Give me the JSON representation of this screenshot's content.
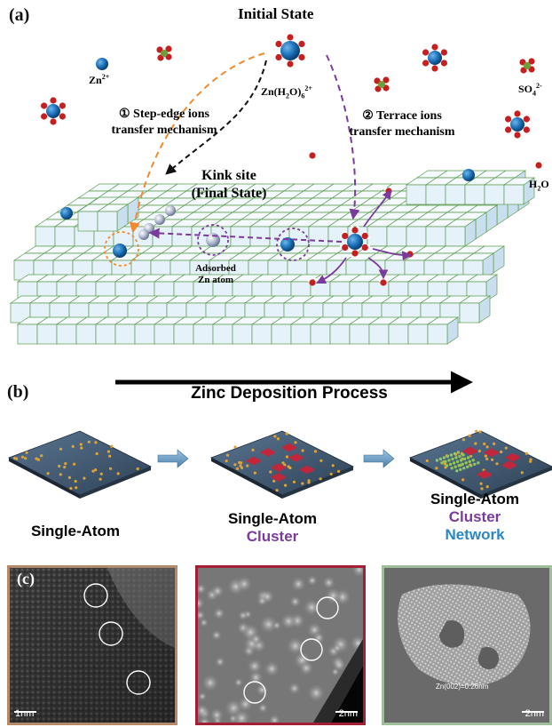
{
  "panel_a": {
    "label": "(a)",
    "initial_state": "Initial State",
    "zn_ion": "Zn",
    "zn_ion_charge": "2+",
    "hydrated_zn_prefix": "Zn(H",
    "hydrated_zn_sub2": "2",
    "hydrated_zn_mid": "O)",
    "hydrated_zn_sub6": "6",
    "hydrated_zn_charge": "2+",
    "sulfate": "SO",
    "sulfate_sub": "4",
    "sulfate_charge": "2-",
    "water": "H",
    "water_sub": "2",
    "water_end": "O",
    "step_edge_line1": "① Step-edge ions",
    "step_edge_line2": "transfer mechanism",
    "terrace_line1": "② Terrace ions",
    "terrace_line2": "transfer mechanism",
    "kink_line1": "Kink site",
    "kink_line2": "(Final State)",
    "adsorbed_line1": "Adsorbed",
    "adsorbed_line2": "Zn atom"
  },
  "panel_b": {
    "label": "(b)",
    "process_title": "Zinc Deposition Process",
    "stage1": "Single-Atom",
    "stage2_line1": "Single-Atom",
    "stage2_line2": "Cluster",
    "stage3_line1": "Single-Atom",
    "stage3_line2": "Cluster",
    "stage3_line3": "Network"
  },
  "panel_c": {
    "label": "(c)",
    "scale1": "1nm",
    "scale2": "2nm",
    "scale3": "2nm",
    "lattice_note": "Zn(002)=0.26nm"
  },
  "colors": {
    "cube_fill": "#e6f2fa",
    "cube_edge": "#5c9c4c",
    "zn_blue": "#1a6fb5",
    "oxygen_red": "#c61f1f",
    "orange_path": "#f08a2c",
    "purple_path": "#7b3a9e",
    "frame1": "#b58a6a",
    "frame2": "#a31f36",
    "frame3": "#9fbf9a"
  }
}
